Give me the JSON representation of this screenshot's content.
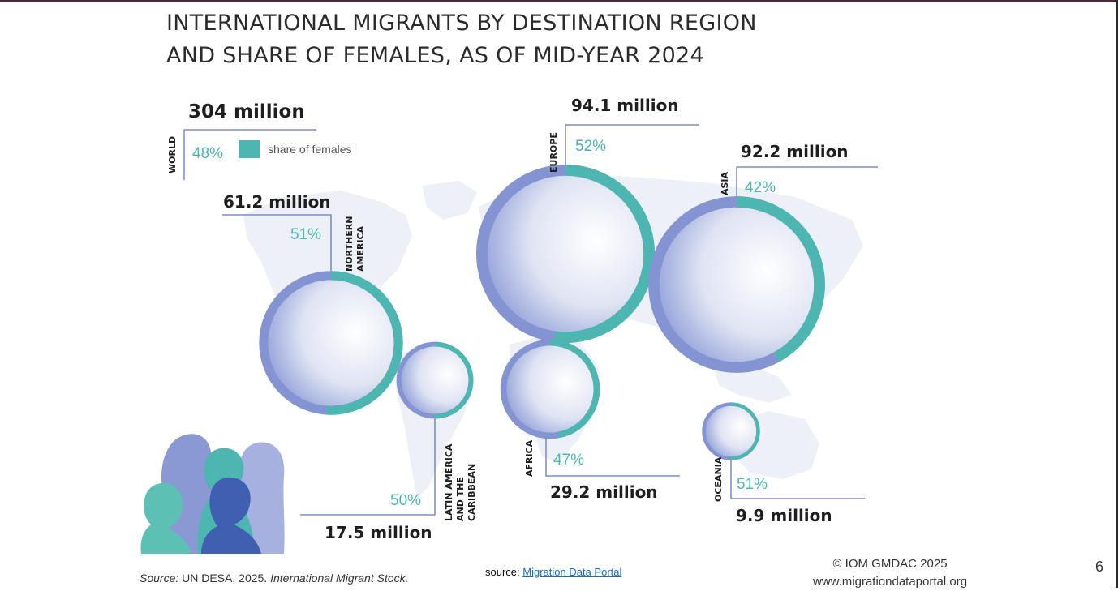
{
  "title": {
    "line1": "INTERNATIONAL MIGRANTS BY DESTINATION REGION",
    "line2": "AND SHARE OF FEMALES, AS OF MID-YEAR 2024"
  },
  "legend": {
    "label": "share of females",
    "color": "#4db6b0"
  },
  "colors": {
    "ring": "#8494d2",
    "female": "#4db6b0",
    "line": "#6677bb",
    "map": "#eef0f7"
  },
  "chart_data": {
    "type": "pie",
    "unit": "million",
    "world": {
      "region": "WORLD",
      "migrants": 304,
      "label": "304 million",
      "female_share": 48,
      "female_label": "48%"
    },
    "regions": [
      {
        "region": "EUROPE",
        "migrants": 94.1,
        "label": "94.1 million",
        "female_share": 52,
        "female_label": "52%"
      },
      {
        "region": "ASIA",
        "migrants": 92.2,
        "label": "92.2 million",
        "female_share": 42,
        "female_label": "42%"
      },
      {
        "region": "NORTHERN AMERICA",
        "migrants": 61.2,
        "label": "61.2 million",
        "female_share": 51,
        "female_label": "51%"
      },
      {
        "region": "AFRICA",
        "migrants": 29.2,
        "label": "29.2 million",
        "female_share": 47,
        "female_label": "47%"
      },
      {
        "region": "LATIN AMERICA AND THE CARIBBEAN",
        "migrants": 17.5,
        "label": "17.5 million",
        "female_share": 50,
        "female_label": "50%"
      },
      {
        "region": "OCEANIA",
        "migrants": 9.9,
        "label": "9.9 million",
        "female_share": 51,
        "female_label": "51%"
      }
    ]
  },
  "region_label_lines": {
    "world": [
      "WORLD"
    ],
    "europe": [
      "EUROPE"
    ],
    "asia": [
      "ASIA"
    ],
    "northern_america": [
      "NORTHERN",
      "AMERICA"
    ],
    "africa": [
      "AFRICA"
    ],
    "latin_america": [
      "LATIN AMERICA",
      "AND THE",
      "CARIBBEAN"
    ],
    "oceania": [
      "OCEANIA"
    ]
  },
  "footer": {
    "source_prefix": "Source:",
    "source_text": "UN DESA, 2025.",
    "source_italic": "International Migrant Stock.",
    "portal_prefix": "source:",
    "portal_link": "Migration Data Portal",
    "copyright": "© IOM GMDAC 2025",
    "website": "www.migrationdataportal.org",
    "page_number": "6"
  }
}
